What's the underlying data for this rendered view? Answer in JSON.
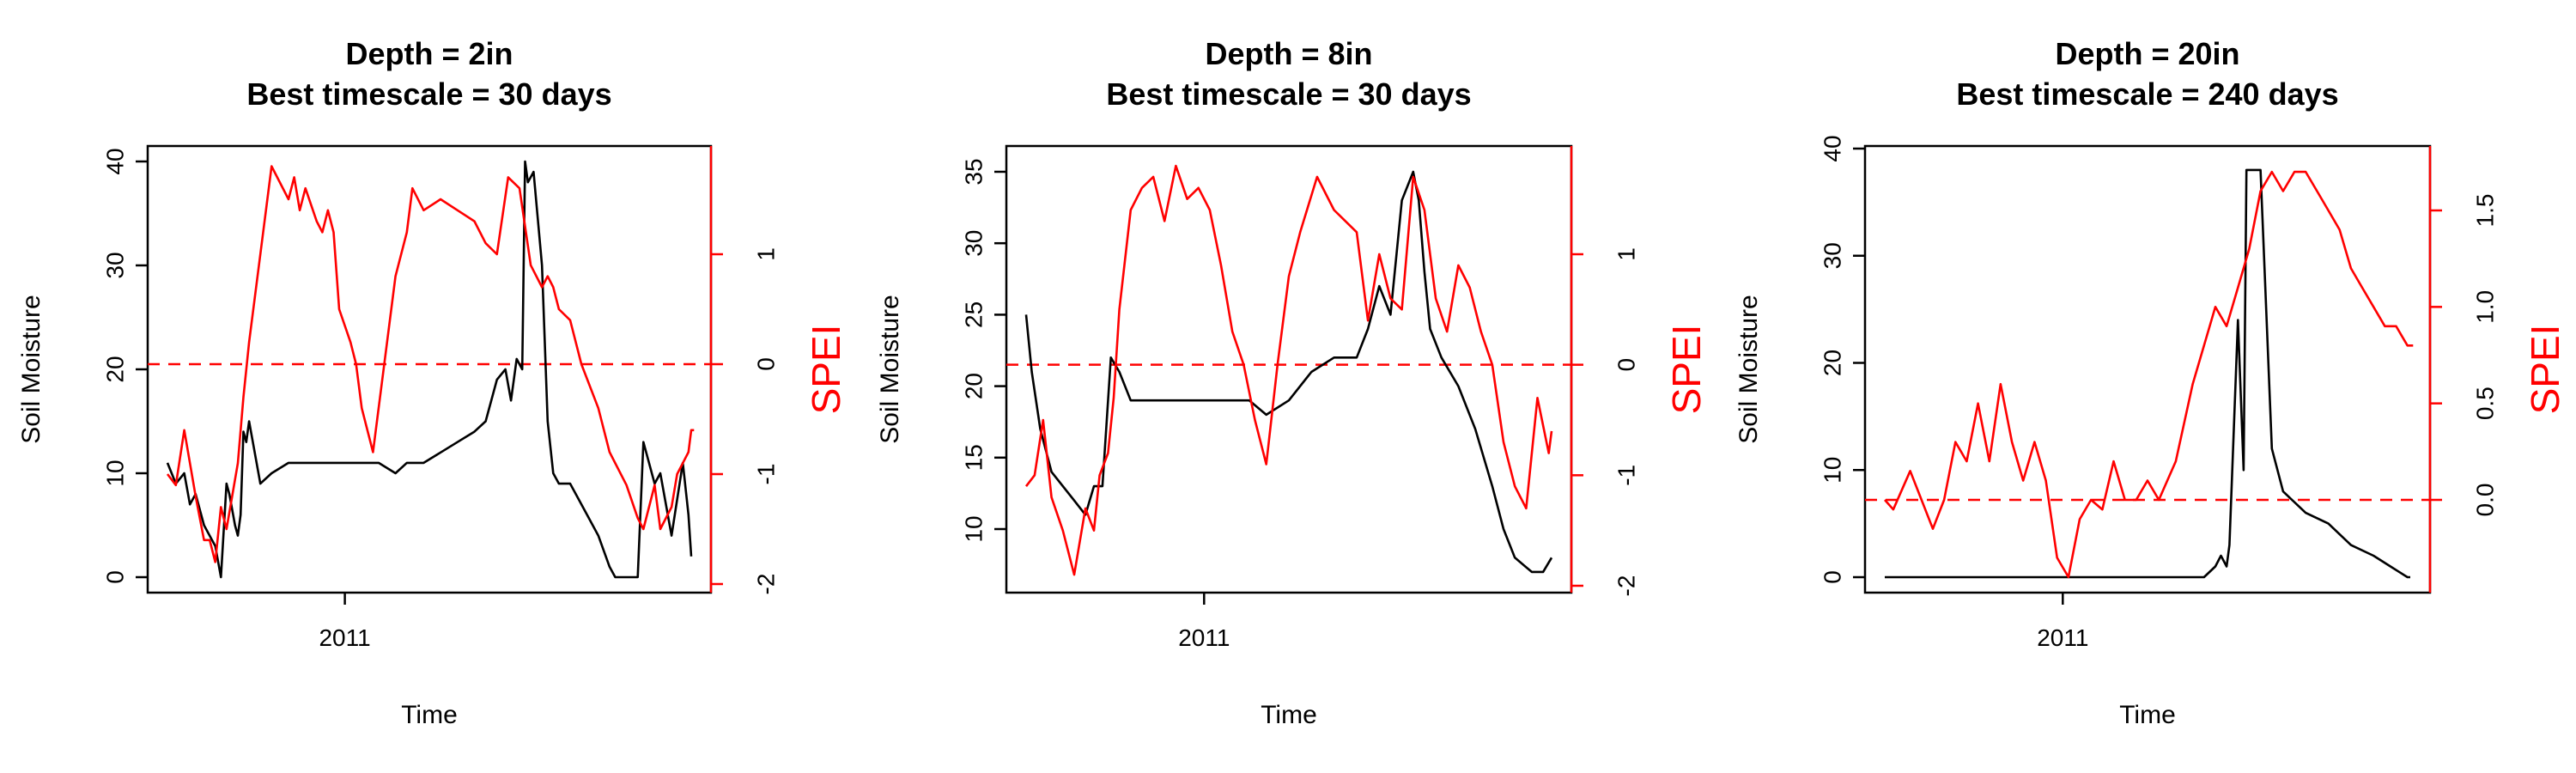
{
  "chart_data": [
    {
      "type": "line",
      "title_lines": [
        "Depth = 2in",
        "Best timescale = 30 days"
      ],
      "xlabel": "Time",
      "ylabel": "Soil Moisture",
      "ylabel_right": "SPEI",
      "x_tick_labels": [
        {
          "x": 0.35,
          "label": "2011"
        }
      ],
      "xlim": [
        0,
        1
      ],
      "ylim": [
        -1.2,
        41.5
      ],
      "ylim_right": [
        -2.0,
        1.9
      ],
      "y_ticks": [
        0,
        10,
        20,
        30,
        40
      ],
      "y_ticks_right": [
        -2,
        -1,
        0,
        1
      ],
      "reference_line": {
        "axis": "right",
        "value": 0,
        "style": "dashed",
        "color": "#ff0000"
      },
      "series": [
        {
          "axis": "left",
          "color": "#000000",
          "x": [
            0.035,
            0.05,
            0.065,
            0.075,
            0.085,
            0.1,
            0.12,
            0.13,
            0.14,
            0.145,
            0.155,
            0.16,
            0.165,
            0.17,
            0.175,
            0.18,
            0.2,
            0.22,
            0.25,
            0.28,
            0.3,
            0.33,
            0.35,
            0.38,
            0.41,
            0.44,
            0.46,
            0.49,
            0.52,
            0.55,
            0.58,
            0.6,
            0.62,
            0.635,
            0.645,
            0.655,
            0.665,
            0.67,
            0.675,
            0.685,
            0.7,
            0.71,
            0.72,
            0.73,
            0.74,
            0.75,
            0.76,
            0.78,
            0.8,
            0.82,
            0.83,
            0.84,
            0.85,
            0.87,
            0.88,
            0.9,
            0.91,
            0.93,
            0.95,
            0.96,
            0.965
          ],
          "values": [
            11,
            9,
            10,
            7,
            8,
            5,
            3,
            0,
            9,
            8,
            5,
            4,
            6,
            14,
            13,
            15,
            9,
            10,
            11,
            11,
            11,
            11,
            11,
            11,
            11,
            10,
            11,
            11,
            12,
            13,
            14,
            15,
            19,
            20,
            17,
            21,
            20,
            40,
            38,
            39,
            30,
            15,
            10,
            9,
            9,
            9,
            8,
            6,
            4,
            1,
            0,
            0,
            0,
            0,
            13,
            9,
            10,
            4,
            11,
            6,
            2
          ]
        },
        {
          "axis": "right",
          "color": "#ff0000",
          "x": [
            0.035,
            0.05,
            0.065,
            0.075,
            0.085,
            0.1,
            0.11,
            0.12,
            0.13,
            0.14,
            0.15,
            0.16,
            0.17,
            0.18,
            0.2,
            0.22,
            0.25,
            0.26,
            0.27,
            0.28,
            0.3,
            0.31,
            0.32,
            0.33,
            0.34,
            0.36,
            0.37,
            0.38,
            0.4,
            0.42,
            0.44,
            0.46,
            0.47,
            0.49,
            0.52,
            0.55,
            0.58,
            0.6,
            0.62,
            0.64,
            0.66,
            0.68,
            0.7,
            0.71,
            0.72,
            0.73,
            0.75,
            0.77,
            0.8,
            0.82,
            0.85,
            0.87,
            0.88,
            0.9,
            0.91,
            0.93,
            0.94,
            0.95,
            0.96,
            0.965,
            0.97
          ],
          "values": [
            -1.0,
            -1.1,
            -0.6,
            -0.9,
            -1.2,
            -1.6,
            -1.6,
            -1.8,
            -1.3,
            -1.5,
            -1.2,
            -0.9,
            -0.3,
            0.2,
            1.0,
            1.8,
            1.5,
            1.7,
            1.4,
            1.6,
            1.3,
            1.2,
            1.4,
            1.2,
            0.5,
            0.2,
            0.0,
            -0.4,
            -0.8,
            0.0,
            0.8,
            1.2,
            1.6,
            1.4,
            1.5,
            1.4,
            1.3,
            1.1,
            1.0,
            1.7,
            1.6,
            0.9,
            0.7,
            0.8,
            0.7,
            0.5,
            0.4,
            0.0,
            -0.4,
            -0.8,
            -1.1,
            -1.4,
            -1.5,
            -1.1,
            -1.5,
            -1.3,
            -1.0,
            -0.9,
            -0.8,
            -0.6,
            -0.6
          ]
        }
      ]
    },
    {
      "type": "line",
      "title_lines": [
        "Depth = 8in",
        "Best timescale = 30 days"
      ],
      "xlabel": "Time",
      "ylabel": "Soil Moisture",
      "ylabel_right": "SPEI",
      "x_tick_labels": [
        {
          "x": 0.35,
          "label": "2011"
        }
      ],
      "xlim": [
        0,
        1
      ],
      "ylim": [
        6.0,
        36.8
      ],
      "ylim_right": [
        -2.0,
        1.9
      ],
      "y_ticks": [
        10,
        15,
        20,
        25,
        30,
        35
      ],
      "y_ticks_right": [
        -2,
        -1,
        0,
        1
      ],
      "reference_line": {
        "axis": "right",
        "value": 0,
        "style": "dashed",
        "color": "#ff0000"
      },
      "series": [
        {
          "axis": "left",
          "color": "#000000",
          "x": [
            0.035,
            0.045,
            0.06,
            0.08,
            0.1,
            0.12,
            0.14,
            0.155,
            0.17,
            0.185,
            0.2,
            0.22,
            0.25,
            0.28,
            0.3,
            0.33,
            0.36,
            0.4,
            0.43,
            0.46,
            0.5,
            0.54,
            0.58,
            0.62,
            0.64,
            0.66,
            0.68,
            0.7,
            0.72,
            0.73,
            0.74,
            0.75,
            0.77,
            0.8,
            0.83,
            0.86,
            0.88,
            0.9,
            0.93,
            0.95,
            0.965
          ],
          "values": [
            25,
            21,
            17,
            14,
            13,
            12,
            11,
            13,
            13,
            22,
            21,
            19,
            19,
            19,
            19,
            19,
            19,
            19,
            19,
            18,
            19,
            21,
            22,
            22,
            24,
            27,
            25,
            33,
            35,
            33,
            28,
            24,
            22,
            20,
            17,
            13,
            10,
            8,
            7,
            7,
            8
          ]
        },
        {
          "axis": "right",
          "color": "#ff0000",
          "x": [
            0.035,
            0.05,
            0.065,
            0.08,
            0.1,
            0.12,
            0.14,
            0.155,
            0.165,
            0.18,
            0.19,
            0.2,
            0.22,
            0.24,
            0.26,
            0.28,
            0.3,
            0.32,
            0.34,
            0.36,
            0.38,
            0.4,
            0.42,
            0.44,
            0.46,
            0.48,
            0.5,
            0.52,
            0.55,
            0.58,
            0.6,
            0.62,
            0.64,
            0.66,
            0.68,
            0.7,
            0.72,
            0.74,
            0.76,
            0.78,
            0.8,
            0.82,
            0.84,
            0.86,
            0.88,
            0.9,
            0.92,
            0.94,
            0.96,
            0.965
          ],
          "values": [
            -1.1,
            -1.0,
            -0.5,
            -1.2,
            -1.5,
            -1.9,
            -1.3,
            -1.5,
            -1.0,
            -0.8,
            -0.3,
            0.5,
            1.4,
            1.6,
            1.7,
            1.3,
            1.8,
            1.5,
            1.6,
            1.4,
            0.9,
            0.3,
            0.0,
            -0.5,
            -0.9,
            0.0,
            0.8,
            1.2,
            1.7,
            1.4,
            1.3,
            1.2,
            0.4,
            1.0,
            0.6,
            0.5,
            1.7,
            1.4,
            0.6,
            0.3,
            0.9,
            0.7,
            0.3,
            0.0,
            -0.7,
            -1.1,
            -1.3,
            -0.3,
            -0.8,
            -0.6
          ]
        }
      ]
    },
    {
      "type": "line",
      "title_lines": [
        "Depth = 20in",
        "Best timescale = 240 days"
      ],
      "xlabel": "Time",
      "ylabel": "Soil Moisture",
      "ylabel_right": "SPEI",
      "x_tick_labels": [
        {
          "x": 0.35,
          "label": "2011"
        }
      ],
      "xlim": [
        0,
        1
      ],
      "ylim": [
        -1.2,
        41.0
      ],
      "ylim_right": [
        -0.48,
        1.8
      ],
      "y_ticks": [
        0,
        10,
        20,
        30,
        40
      ],
      "y_ticks_right": [
        0.0,
        0.5,
        1.0,
        1.5
      ],
      "reference_line": {
        "axis": "right",
        "value": 0,
        "style": "dashed",
        "color": "#ff0000"
      },
      "series": [
        {
          "axis": "left",
          "color": "#000000",
          "x": [
            0.035,
            0.1,
            0.2,
            0.3,
            0.4,
            0.5,
            0.55,
            0.58,
            0.6,
            0.62,
            0.63,
            0.64,
            0.645,
            0.66,
            0.67,
            0.675,
            0.68,
            0.7,
            0.72,
            0.74,
            0.78,
            0.82,
            0.86,
            0.9,
            0.93,
            0.96,
            0.965
          ],
          "values": [
            0,
            0,
            0,
            0,
            0,
            0,
            0,
            0,
            0,
            1,
            2,
            1,
            3,
            24,
            10,
            38,
            38,
            38,
            12,
            8,
            6,
            5,
            3,
            2,
            1,
            0,
            0
          ]
        },
        {
          "axis": "right",
          "color": "#ff0000",
          "x": [
            0.035,
            0.05,
            0.08,
            0.1,
            0.12,
            0.14,
            0.16,
            0.18,
            0.2,
            0.22,
            0.24,
            0.26,
            0.28,
            0.3,
            0.32,
            0.34,
            0.36,
            0.38,
            0.4,
            0.42,
            0.44,
            0.46,
            0.48,
            0.5,
            0.52,
            0.55,
            0.58,
            0.6,
            0.62,
            0.64,
            0.66,
            0.68,
            0.7,
            0.72,
            0.74,
            0.76,
            0.78,
            0.8,
            0.82,
            0.84,
            0.86,
            0.88,
            0.9,
            0.92,
            0.94,
            0.96,
            0.97
          ],
          "values": [
            0.0,
            -0.05,
            0.15,
            0.0,
            -0.15,
            0.0,
            0.3,
            0.2,
            0.5,
            0.2,
            0.6,
            0.3,
            0.1,
            0.3,
            0.1,
            -0.3,
            -0.4,
            -0.1,
            0.0,
            -0.05,
            0.2,
            0.0,
            0.0,
            0.1,
            0.0,
            0.2,
            0.6,
            0.8,
            1.0,
            0.9,
            1.1,
            1.3,
            1.6,
            1.7,
            1.6,
            1.7,
            1.7,
            1.6,
            1.5,
            1.4,
            1.2,
            1.1,
            1.0,
            0.9,
            0.9,
            0.8,
            0.8
          ]
        }
      ]
    }
  ]
}
